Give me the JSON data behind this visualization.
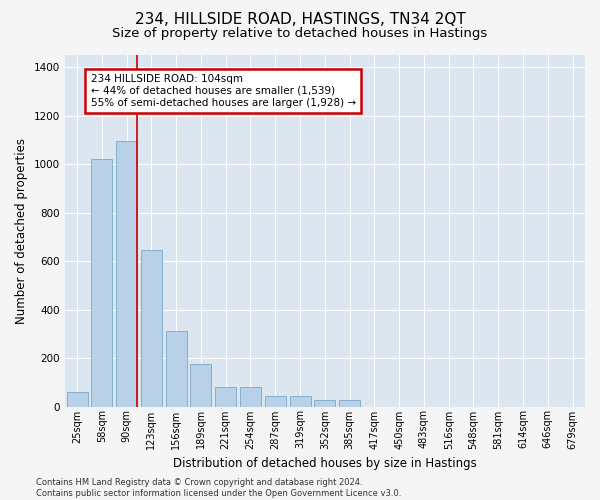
{
  "title": "234, HILLSIDE ROAD, HASTINGS, TN34 2QT",
  "subtitle": "Size of property relative to detached houses in Hastings",
  "xlabel": "Distribution of detached houses by size in Hastings",
  "ylabel": "Number of detached properties",
  "categories": [
    "25sqm",
    "58sqm",
    "90sqm",
    "123sqm",
    "156sqm",
    "189sqm",
    "221sqm",
    "254sqm",
    "287sqm",
    "319sqm",
    "352sqm",
    "385sqm",
    "417sqm",
    "450sqm",
    "483sqm",
    "516sqm",
    "548sqm",
    "581sqm",
    "614sqm",
    "646sqm",
    "679sqm"
  ],
  "values": [
    60,
    1020,
    1095,
    645,
    310,
    175,
    80,
    80,
    45,
    45,
    25,
    25,
    0,
    0,
    0,
    0,
    0,
    0,
    0,
    0,
    0
  ],
  "bar_color": "#b8d0e8",
  "bar_edge_color": "#7aaac8",
  "bg_color": "#dce6f0",
  "grid_color": "#ffffff",
  "annotation_line1": "234 HILLSIDE ROAD: 104sqm",
  "annotation_line2": "← 44% of detached houses are smaller (1,539)",
  "annotation_line3": "55% of semi-detached houses are larger (1,928) →",
  "annotation_box_color": "#ffffff",
  "annotation_box_edge": "#cc0000",
  "footer": "Contains HM Land Registry data © Crown copyright and database right 2024.\nContains public sector information licensed under the Open Government Licence v3.0.",
  "ylim": [
    0,
    1450
  ],
  "vline_index": 2,
  "title_fontsize": 11,
  "subtitle_fontsize": 9.5,
  "ylabel_fontsize": 8.5,
  "xlabel_fontsize": 8.5,
  "tick_fontsize": 7,
  "footer_fontsize": 6,
  "ann_fontsize": 7.5
}
